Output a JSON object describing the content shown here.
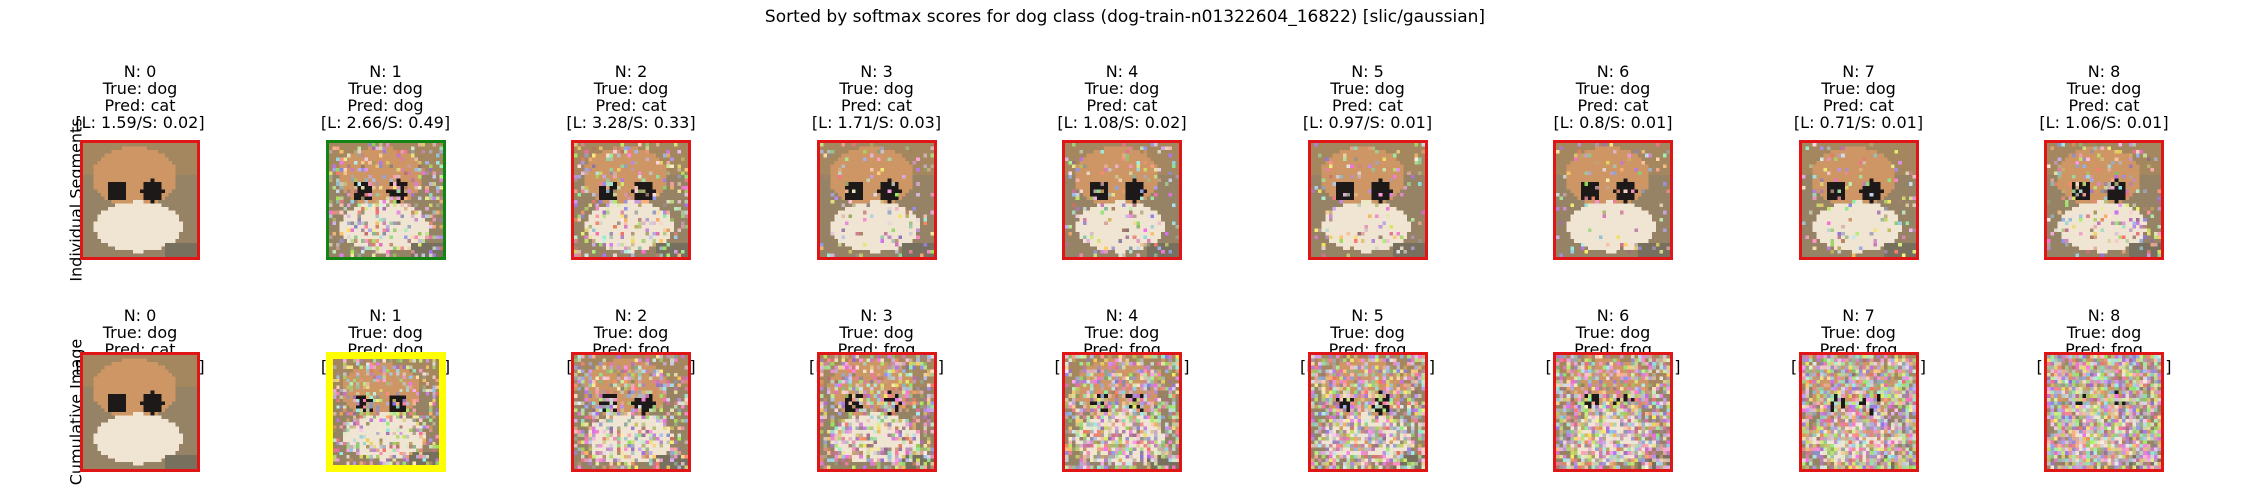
{
  "title": "Sorted by softmax scores for dog class (dog-train-n01322604_16822) [slic/gaussian]",
  "row_labels": [
    "Individual Segments",
    "Cumulative Image"
  ],
  "colors": {
    "red": "#e01515",
    "green": "#138413",
    "yellow": "#ffff00"
  },
  "chart_data": {
    "type": "image-grid",
    "rows": [
      {
        "label": "Individual Segments",
        "panels": [
          {
            "n": "N: 0",
            "true": "True: dog",
            "pred": "Pred: cat",
            "ls": "[L: 1.59/S: 0.02]",
            "border": "red",
            "noise": 0.0
          },
          {
            "n": "N: 1",
            "true": "True: dog",
            "pred": "Pred: dog",
            "ls": "[L: 2.66/S: 0.49]",
            "border": "green",
            "noise": 0.35
          },
          {
            "n": "N: 2",
            "true": "True: dog",
            "pred": "Pred: cat",
            "ls": "[L: 3.28/S: 0.33]",
            "border": "red",
            "noise": 0.25
          },
          {
            "n": "N: 3",
            "true": "True: dog",
            "pred": "Pred: cat",
            "ls": "[L: 1.71/S: 0.03]",
            "border": "red",
            "noise": 0.12
          },
          {
            "n": "N: 4",
            "true": "True: dog",
            "pred": "Pred: cat",
            "ls": "[L: 1.08/S: 0.02]",
            "border": "red",
            "noise": 0.15
          },
          {
            "n": "N: 5",
            "true": "True: dog",
            "pred": "Pred: cat",
            "ls": "[L: 0.97/S: 0.01]",
            "border": "red",
            "noise": 0.12
          },
          {
            "n": "N: 6",
            "true": "True: dog",
            "pred": "Pred: cat",
            "ls": "[L: 0.8/S: 0.01]",
            "border": "red",
            "noise": 0.1
          },
          {
            "n": "N: 7",
            "true": "True: dog",
            "pred": "Pred: cat",
            "ls": "[L: 0.71/S: 0.01]",
            "border": "red",
            "noise": 0.1
          },
          {
            "n": "N: 8",
            "true": "True: dog",
            "pred": "Pred: cat",
            "ls": "[L: 1.06/S: 0.01]",
            "border": "red",
            "noise": 0.18
          }
        ]
      },
      {
        "label": "Cumulative Image",
        "panels": [
          {
            "n": "N: 0",
            "true": "True: dog",
            "pred": "Pred: cat",
            "ls": "[L: 1.59/S: 0.02]",
            "border": "red",
            "noise": 0.0
          },
          {
            "n": "N: 1",
            "true": "True: dog",
            "pred": "Pred: dog",
            "ls": "[L: 2.66/S: 0.49]",
            "border": "yellow",
            "noise": 0.35
          },
          {
            "n": "N: 2",
            "true": "True: dog",
            "pred": "Pred: frog",
            "ls": "[L: 0.53/S: 0.11]",
            "border": "red",
            "noise": 0.45
          },
          {
            "n": "N: 3",
            "true": "True: dog",
            "pred": "Pred: frog",
            "ls": "[L: -0.06/S: 0.03]",
            "border": "red",
            "noise": 0.52
          },
          {
            "n": "N: 4",
            "true": "True: dog",
            "pred": "Pred: frog",
            "ls": "[L: -0.53/S: 0.02]",
            "border": "red",
            "noise": 0.6
          },
          {
            "n": "N: 5",
            "true": "True: dog",
            "pred": "Pred: frog",
            "ls": "[L: -0.82/S: 0.01]",
            "border": "red",
            "noise": 0.66
          },
          {
            "n": "N: 6",
            "true": "True: dog",
            "pred": "Pred: frog",
            "ls": "[L: -0.68/S: 0.01]",
            "border": "red",
            "noise": 0.72
          },
          {
            "n": "N: 7",
            "true": "True: dog",
            "pred": "Pred: frog",
            "ls": "[L: -0.65/S: 0.01]",
            "border": "red",
            "noise": 0.8
          },
          {
            "n": "N: 8",
            "true": "True: dog",
            "pred": "Pred: frog",
            "ls": "[L: -0.58/S: 0.01]",
            "border": "red",
            "noise": 0.9
          }
        ]
      }
    ]
  }
}
